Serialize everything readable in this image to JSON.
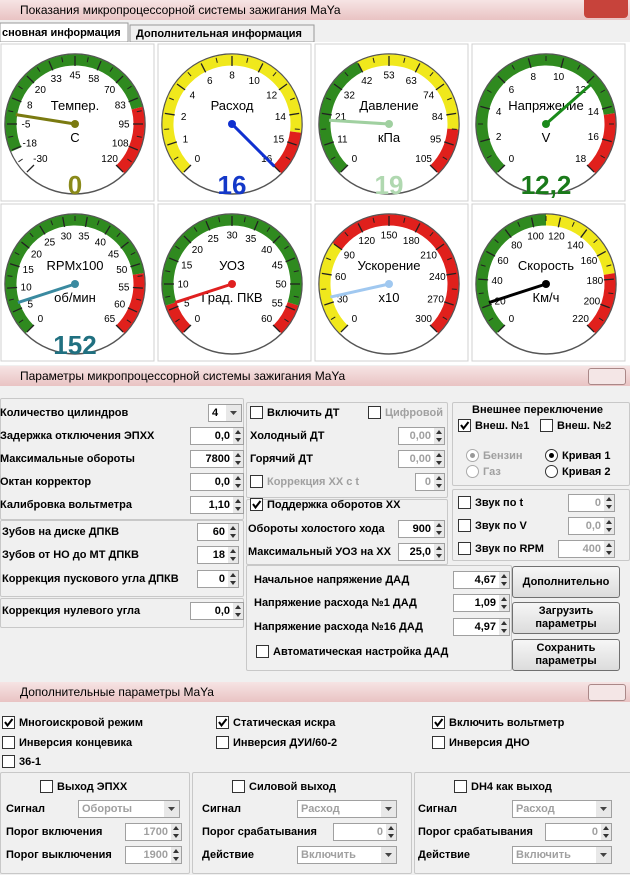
{
  "window1": {
    "title": "Показания микропроцессорной системы зажигания MaYa",
    "tabs": [
      "сновная информация",
      "Дополнительная информация"
    ],
    "gauges": [
      {
        "label": "Темпер.",
        "unit": "C",
        "ticks": [
          "-30",
          "-18",
          "-5",
          "8",
          "20",
          "33",
          "45",
          "58",
          "70",
          "83",
          "95",
          "108",
          "120"
        ],
        "value": "0"
      },
      {
        "label": "Расход",
        "ticks": [
          "0",
          "1",
          "2",
          "4",
          "6",
          "8",
          "10",
          "12",
          "14",
          "15",
          "16"
        ],
        "value": "16"
      },
      {
        "label": "Давление",
        "unit": "кПа",
        "ticks": [
          "0",
          "11",
          "21",
          "32",
          "42",
          "53",
          "63",
          "74",
          "84",
          "95",
          "105"
        ],
        "value": "19"
      },
      {
        "label": "Напряжение",
        "unit": "V",
        "ticks": [
          "0",
          "2",
          "4",
          "6",
          "8",
          "10",
          "12",
          "14",
          "16",
          "18"
        ],
        "value": "12,2"
      },
      {
        "label": "RPMx100",
        "unit": "об/мин",
        "ticks": [
          "0",
          "5",
          "10",
          "15",
          "20",
          "25",
          "30",
          "35",
          "40",
          "45",
          "50",
          "55",
          "60",
          "65"
        ],
        "value": "152"
      },
      {
        "label": "УОЗ",
        "unit": "Град. ПКВ",
        "ticks": [
          "0",
          "5",
          "10",
          "15",
          "20",
          "25",
          "30",
          "35",
          "40",
          "45",
          "50",
          "55",
          "60"
        ]
      },
      {
        "label": "Ускорение",
        "unit": "x10",
        "ticks": [
          "0",
          "30",
          "60",
          "90",
          "120",
          "150",
          "180",
          "210",
          "240",
          "270",
          "300"
        ]
      },
      {
        "label": "Скорость",
        "unit": "Км/ч",
        "ticks": [
          "0",
          "20",
          "40",
          "60",
          "80",
          "100",
          "120",
          "140",
          "160",
          "180",
          "200",
          "220"
        ]
      }
    ]
  },
  "window2": {
    "title": "Параметры микропроцессорной системы зажигания MaYa",
    "fields": [
      {
        "label": "Количество цилиндров",
        "value": "4"
      },
      {
        "label": "Задержка отключения ЭПХХ",
        "value": "0,0"
      },
      {
        "label": "Максимальные обороты",
        "value": "7800"
      },
      {
        "label": "Октан корректор",
        "value": "0,0"
      },
      {
        "label": "Калибровка вольтметра",
        "value": "1,10"
      },
      {
        "label": "Зубов на диске ДПКВ",
        "value": "60"
      },
      {
        "label": "Зубов от НО до  МТ ДПКВ",
        "value": "18"
      },
      {
        "label": "Коррекция пускового угла ДПКВ",
        "value": "0"
      },
      {
        "label": "Коррекция нулевого угла",
        "value": "0,0"
      },
      {
        "label": "Холодный ДТ",
        "value": "0,00",
        "disabled": true
      },
      {
        "label": "Горячий ДТ",
        "value": "0,00",
        "disabled": true
      },
      {
        "label": "Обороты холостого хода",
        "value": "900"
      },
      {
        "label": "Максимальный УОЗ на ХХ",
        "value": "25,0"
      },
      {
        "label": "Начальное напряжение ДАД",
        "value": "4,67"
      },
      {
        "label": "Напряжение расхода №1 ДАД",
        "value": "1,09"
      },
      {
        "label": "Напряжение расхода №16 ДАД",
        "value": "4,97"
      }
    ],
    "checks": [
      {
        "label": "Включить ДТ",
        "checked": false
      },
      {
        "label": "Цифровой",
        "checked": false,
        "disabled": true
      },
      {
        "label": "Коррекция ХХ с t",
        "checked": false,
        "disabled": true,
        "value": "0"
      },
      {
        "label": "Поддержка оборотов ХХ",
        "checked": true
      },
      {
        "label": "Автоматическая настройка ДАД",
        "checked": false
      },
      {
        "label": "Внеш. №1",
        "checked": true
      },
      {
        "label": "Внеш. №2",
        "checked": false
      },
      {
        "label": "Звук по t",
        "checked": false,
        "value": "0",
        "disabled_value": true
      },
      {
        "label": "Звук по V",
        "checked": false,
        "value": "0,0",
        "disabled_value": true
      },
      {
        "label": "Звук по RPM",
        "checked": false,
        "value": "400",
        "disabled_value": true
      }
    ],
    "group_title": "Внешнее переключение",
    "radios": [
      {
        "label": "Бензин",
        "checked": true,
        "disabled": true
      },
      {
        "label": "Газ",
        "checked": false,
        "disabled": true
      },
      {
        "label": "Кривая 1",
        "checked": true
      },
      {
        "label": "Кривая 2",
        "checked": false
      }
    ],
    "buttons": [
      "Дополнительно",
      "Загрузить параметры",
      "Сохранить параметры"
    ]
  },
  "window3": {
    "title": "Дополнительные параметры MaYa",
    "checks": [
      {
        "label": "Многоискровой режим",
        "checked": true
      },
      {
        "label": "Статическая искра",
        "checked": true
      },
      {
        "label": "Включить вольтметр",
        "checked": true
      },
      {
        "label": "Инверсия концевика",
        "checked": false
      },
      {
        "label": "Инверсия ДУИ/60-2",
        "checked": false
      },
      {
        "label": "Инверсия ДНО",
        "checked": false
      },
      {
        "label": "36-1",
        "checked": false
      }
    ],
    "groups": [
      {
        "check": {
          "label": "Выход ЭПХХ",
          "checked": false
        },
        "rows": [
          {
            "label": "Сигнал",
            "value": "Обороты"
          },
          {
            "label": "Порог включения",
            "value": "1700"
          },
          {
            "label": "Порог выключения",
            "value": "1900"
          }
        ]
      },
      {
        "check": {
          "label": "Силовой выход",
          "checked": false
        },
        "rows": [
          {
            "label": "Сигнал",
            "value": "Расход"
          },
          {
            "label": "Порог срабатывания",
            "value": "0"
          },
          {
            "label": "Действие",
            "value": "Включить"
          }
        ]
      },
      {
        "check": {
          "label": "DH4 как выход",
          "checked": false
        },
        "rows": [
          {
            "label": "Сигнал",
            "value": "Расход"
          },
          {
            "label": "Порог срабатывания",
            "value": "0"
          },
          {
            "label": "Действие",
            "value": "Включить"
          }
        ]
      }
    ]
  }
}
